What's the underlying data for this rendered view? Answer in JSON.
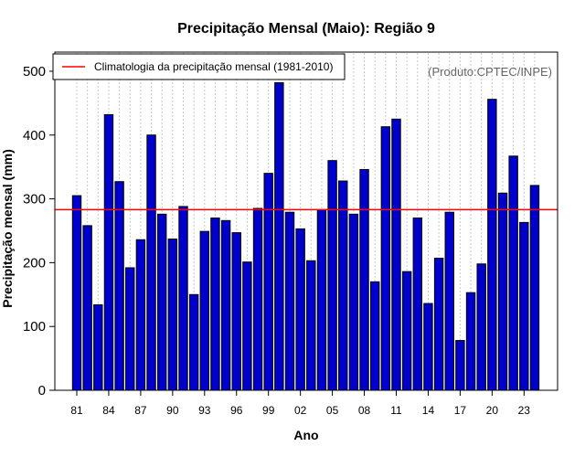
{
  "chart_data": {
    "type": "bar",
    "title": "Precipitação Mensal (Maio): Região 9",
    "xlabel": "Ano",
    "ylabel": "Precipitação mensal (mm)",
    "ylim": [
      0,
      530
    ],
    "yticks": [
      0,
      100,
      200,
      300,
      400,
      500
    ],
    "categories": [
      "1981",
      "1982",
      "1983",
      "1984",
      "1985",
      "1986",
      "1987",
      "1988",
      "1989",
      "1990",
      "1991",
      "1992",
      "1993",
      "1994",
      "1995",
      "1996",
      "1997",
      "1998",
      "1999",
      "2000",
      "2001",
      "2002",
      "2003",
      "2004",
      "2005",
      "2006",
      "2007",
      "2008",
      "2009",
      "2010",
      "2011",
      "2012",
      "2013",
      "2014",
      "2015",
      "2016",
      "2017",
      "2018",
      "2019",
      "2020",
      "2021",
      "2022",
      "2023",
      "2024"
    ],
    "xtick_labels": [
      {
        "index": 0,
        "label": "81"
      },
      {
        "index": 3,
        "label": "84"
      },
      {
        "index": 6,
        "label": "87"
      },
      {
        "index": 9,
        "label": "90"
      },
      {
        "index": 12,
        "label": "93"
      },
      {
        "index": 15,
        "label": "96"
      },
      {
        "index": 18,
        "label": "99"
      },
      {
        "index": 21,
        "label": "02"
      },
      {
        "index": 24,
        "label": "05"
      },
      {
        "index": 27,
        "label": "08"
      },
      {
        "index": 30,
        "label": "11"
      },
      {
        "index": 33,
        "label": "14"
      },
      {
        "index": 36,
        "label": "17"
      },
      {
        "index": 39,
        "label": "20"
      },
      {
        "index": 42,
        "label": "23"
      }
    ],
    "values": [
      305,
      258,
      134,
      432,
      327,
      192,
      236,
      400,
      276,
      237,
      288,
      150,
      249,
      270,
      266,
      247,
      201,
      285,
      340,
      482,
      279,
      253,
      203,
      283,
      360,
      328,
      276,
      346,
      170,
      413,
      425,
      186,
      270,
      136,
      207,
      279,
      78,
      153,
      198,
      456,
      309,
      367,
      263,
      321
    ],
    "climatology": 283,
    "legend": {
      "label": "Climatologia da precipitação mensal (1981-2010)",
      "position": "top-left"
    },
    "credit": "(Produto:CPTEC/INPE)",
    "grid": "vertical dotted",
    "colors": {
      "bar_fill": "#0000cc",
      "bar_stroke": "#000000",
      "climatology_line": "#ff0000",
      "grid": "#c8c8c8"
    }
  }
}
